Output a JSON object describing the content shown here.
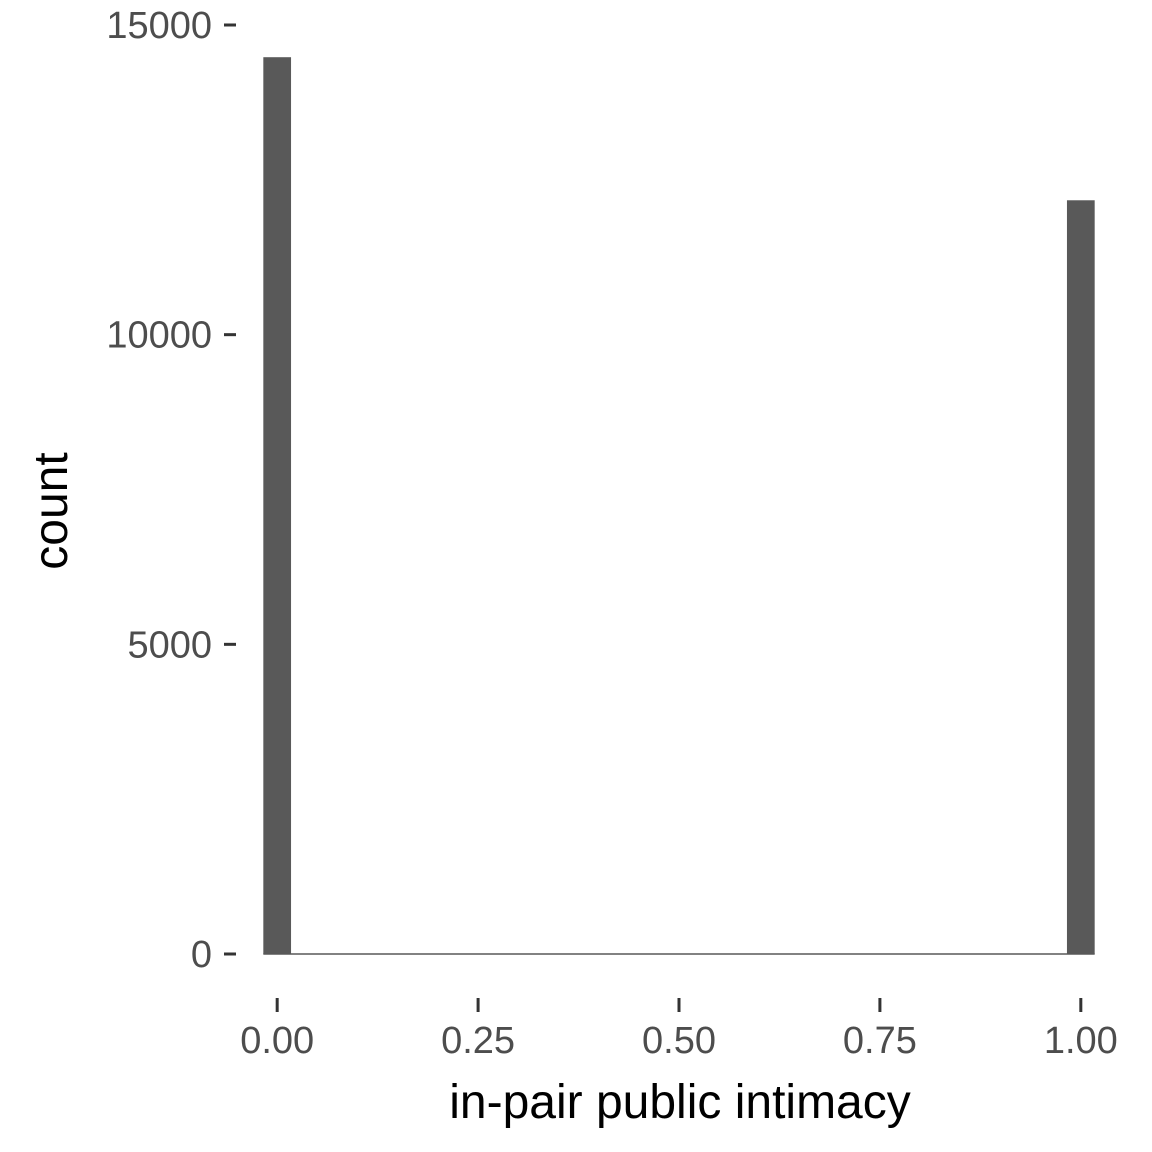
{
  "chart_data": {
    "type": "bar",
    "xlabel": "in-pair public intimacy",
    "ylabel": "count",
    "xlim": [
      -0.05,
      1.05
    ],
    "ylim": [
      0,
      15000
    ],
    "x_ticks": [
      {
        "value": 0.0,
        "label": "0.00"
      },
      {
        "value": 0.25,
        "label": "0.25"
      },
      {
        "value": 0.5,
        "label": "0.50"
      },
      {
        "value": 0.75,
        "label": "0.75"
      },
      {
        "value": 1.0,
        "label": "1.00"
      }
    ],
    "y_ticks": [
      {
        "value": 0,
        "label": "0"
      },
      {
        "value": 5000,
        "label": "5000"
      },
      {
        "value": 10000,
        "label": "10000"
      },
      {
        "value": 15000,
        "label": "15000"
      }
    ],
    "bin_width": 0.0345,
    "bins": [
      {
        "x": 0.0,
        "count": 14480
      },
      {
        "x": 1.0,
        "count": 12170
      }
    ],
    "bar_color": "#595959",
    "grid": false
  }
}
